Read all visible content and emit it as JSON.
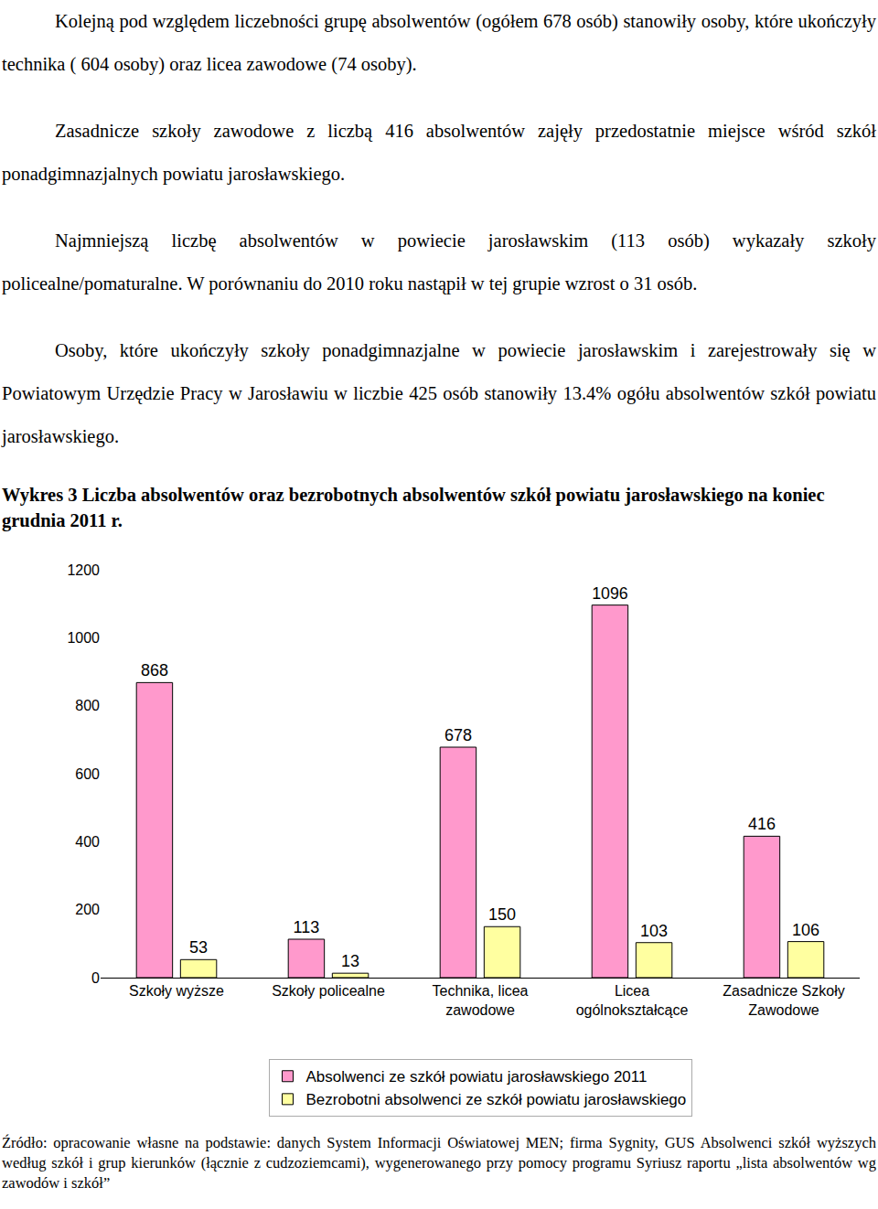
{
  "paragraphs": [
    "Kolejną pod względem liczebności grupę absolwentów (ogółem 678 osób) stanowiły osoby, które ukończyły technika ( 604 osoby) oraz licea zawodowe (74 osoby).",
    "Zasadnicze szkoły zawodowe z liczbą 416 absolwentów  zajęły przedostatnie miejsce wśród szkół ponadgimnazjalnych  powiatu  jarosławskiego.",
    "Najmniejszą liczbę absolwentów w powiecie jarosławskim (113 osób) wykazały szkoły policealne/pomaturalne. W porównaniu do 2010 roku nastąpił w tej grupie wzrost o 31 osób.",
    "Osoby, które ukończyły szkoły ponadgimnazjalne  w powiecie jarosławskim i zarejestrowały się w Powiatowym Urzędzie Pracy w Jarosławiu w  liczbie 425 osób stanowiły 13.4% ogółu absolwentów szkół  powiatu jarosławskiego."
  ],
  "chart_data": {
    "type": "bar",
    "title": "Wykres 3 Liczba absolwentów oraz  bezrobotnych absolwentów szkół powiatu jarosławskiego na koniec grudnia 2011 r.",
    "categories": [
      "Szkoły wyższe",
      "Szkoły policealne",
      "Technika, licea zawodowe",
      "Licea ogólnokształcące",
      "Zasadnicze Szkoły Zawodowe"
    ],
    "series": [
      {
        "name": "Absolwenci ze szkół powiatu jarosławskiego 2011",
        "color": "#ff99cc",
        "values": [
          868,
          113,
          678,
          1096,
          416
        ]
      },
      {
        "name": "Bezrobotni absolwenci ze szkół powiatu jarosławskiego",
        "color": "#ffffa0",
        "values": [
          53,
          13,
          150,
          103,
          106
        ]
      }
    ],
    "ylim": [
      0,
      1200
    ],
    "yticks": [
      0,
      200,
      400,
      600,
      800,
      1000,
      1200
    ],
    "grid": false,
    "legend": "bottom",
    "data_labels": true
  },
  "source": "Źródło: opracowanie własne na podstawie: danych System Informacji Oświatowej MEN; firma Sygnity, GUS Absolwenci szkół wyższych według szkół i grup kierunków (łącznie z cudzoziemcami), wygenerowanego przy pomocy programu Syriusz raportu „lista absolwentów wg zawodów i szkół”"
}
